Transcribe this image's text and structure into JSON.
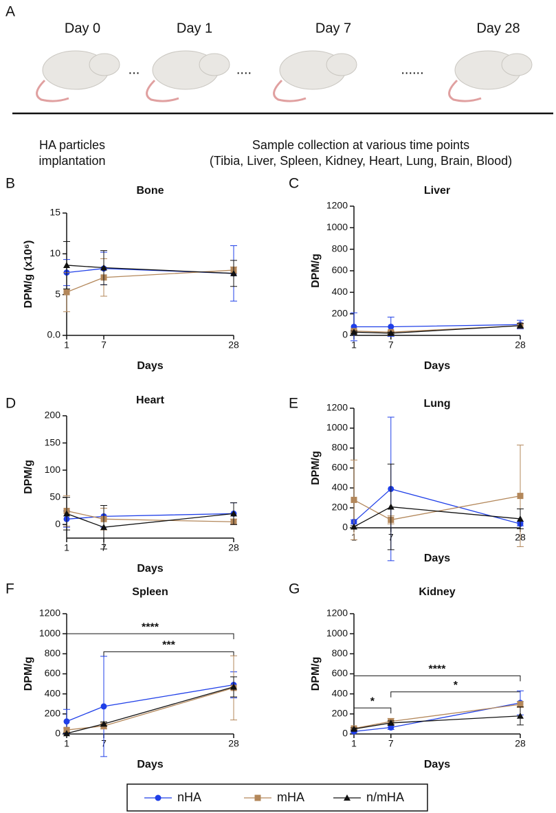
{
  "panel_a": {
    "letter": "A",
    "days": [
      "Day 0",
      "Day 1",
      "Day 7",
      "Day 28"
    ],
    "dots": [
      "...",
      "....",
      "......"
    ],
    "caption_left": [
      "HA particles",
      "implantation"
    ],
    "caption_right": [
      "Sample collection at various time points",
      "(Tibia, Liver, Spleen, Kidney, Heart, Lung, Brain, Blood)"
    ]
  },
  "legend": [
    {
      "name": "nHA",
      "color": "#1f3fe8",
      "marker": "circle"
    },
    {
      "name": "mHA",
      "color": "#b3875a",
      "marker": "square"
    },
    {
      "name": "n/mHA",
      "color": "#111111",
      "marker": "triangle"
    }
  ],
  "chart_data": [
    {
      "type": "line",
      "letter": "B",
      "title": "Bone",
      "ylabel": "DPM/g (x10⁶)",
      "xlabel": "Days",
      "x": [
        1,
        7,
        28
      ],
      "xlim": [
        1,
        28
      ],
      "xticks": [
        1,
        7,
        28
      ],
      "ylim": [
        0,
        15
      ],
      "yticks": [
        {
          "value": 0,
          "label": "0.0"
        },
        5,
        10,
        15
      ],
      "series": [
        {
          "values": [
            7.7,
            8.2,
            7.6
          ],
          "errors": [
            1.6,
            2.0,
            3.4
          ]
        },
        {
          "values": [
            5.3,
            7.1,
            8.0
          ],
          "errors": [
            2.4,
            2.3,
            0.4
          ]
        },
        {
          "values": [
            8.6,
            8.3,
            7.6
          ],
          "errors": [
            2.9,
            2.1,
            1.6
          ]
        }
      ]
    },
    {
      "type": "line",
      "letter": "C",
      "title": "Liver",
      "ylabel": "DPM/g",
      "xlabel": "Days",
      "x": [
        1,
        7,
        28
      ],
      "xlim": [
        1,
        28
      ],
      "xticks": [
        1,
        7,
        28
      ],
      "ylim": [
        0,
        1200
      ],
      "yticks": [
        0,
        200,
        400,
        600,
        800,
        1000,
        1200
      ],
      "series": [
        {
          "values": [
            80,
            80,
            100
          ],
          "errors": [
            130,
            90,
            40
          ]
        },
        {
          "values": [
            40,
            30,
            90
          ],
          "errors": [
            10,
            10,
            20
          ]
        },
        {
          "values": [
            30,
            20,
            90
          ],
          "errors": [
            10,
            10,
            20
          ]
        }
      ]
    },
    {
      "type": "line",
      "letter": "D",
      "title": "Heart",
      "ylabel": "DPM/g",
      "xlabel": "Days",
      "x": [
        1,
        7,
        28
      ],
      "xlim": [
        1,
        28
      ],
      "xticks": [
        1,
        7,
        28
      ],
      "ylim": [
        -25,
        200
      ],
      "yticks": [
        0,
        50,
        100,
        150,
        200
      ],
      "series": [
        {
          "values": [
            10,
            15,
            20
          ],
          "errors": [
            15,
            20,
            20
          ]
        },
        {
          "values": [
            25,
            10,
            5
          ],
          "errors": [
            28,
            20,
            5
          ]
        },
        {
          "values": [
            20,
            -5,
            20
          ],
          "errors": [
            30,
            40,
            20
          ]
        }
      ]
    },
    {
      "type": "line",
      "letter": "E",
      "title": "Lung",
      "ylabel": "DPM/g",
      "xlabel": "Days",
      "x": [
        1,
        7,
        28
      ],
      "xlim": [
        1,
        28
      ],
      "xticks": [
        1,
        7,
        28
      ],
      "ylim": [
        0,
        1200
      ],
      "yticks": [
        0,
        200,
        400,
        600,
        800,
        1000,
        1200
      ],
      "series": [
        {
          "values": [
            60,
            390,
            40
          ],
          "errors": [
            20,
            720,
            20
          ]
        },
        {
          "values": [
            280,
            80,
            320
          ],
          "errors": [
            400,
            40,
            510
          ]
        },
        {
          "values": [
            10,
            210,
            90
          ],
          "errors": [
            10,
            430,
            100
          ]
        }
      ]
    },
    {
      "type": "line",
      "letter": "F",
      "title": "Spleen",
      "ylabel": "DPM/g",
      "xlabel": "Days",
      "x": [
        1,
        7,
        28
      ],
      "xlim": [
        1,
        28
      ],
      "xticks": [
        1,
        7,
        28
      ],
      "ylim": [
        0,
        1200
      ],
      "yticks": [
        0,
        200,
        400,
        600,
        800,
        1000,
        1200
      ],
      "series": [
        {
          "values": [
            125,
            275,
            490
          ],
          "errors": [
            120,
            500,
            130
          ]
        },
        {
          "values": [
            40,
            80,
            460
          ],
          "errors": [
            20,
            30,
            320
          ]
        },
        {
          "values": [
            5,
            100,
            470
          ],
          "errors": [
            5,
            20,
            100
          ]
        }
      ],
      "brackets": [
        {
          "label": "****",
          "from": 1,
          "to": 28,
          "y": 1000
        },
        {
          "label": "***",
          "from": 7,
          "to": 28,
          "y": 820
        }
      ]
    },
    {
      "type": "line",
      "letter": "G",
      "title": "Kidney",
      "ylabel": "DPM/g",
      "xlabel": "Days",
      "x": [
        1,
        7,
        28
      ],
      "xlim": [
        1,
        28
      ],
      "xticks": [
        1,
        7,
        28
      ],
      "ylim": [
        0,
        1200
      ],
      "yticks": [
        0,
        200,
        400,
        600,
        800,
        1000,
        1200
      ],
      "series": [
        {
          "values": [
            25,
            65,
            310
          ],
          "errors": [
            10,
            20,
            120
          ]
        },
        {
          "values": [
            55,
            125,
            295
          ],
          "errors": [
            10,
            30,
            30
          ]
        },
        {
          "values": [
            50,
            110,
            180
          ],
          "errors": [
            10,
            20,
            90
          ]
        }
      ],
      "brackets": [
        {
          "label": "*",
          "from": 1,
          "to": 7,
          "y": 260
        },
        {
          "label": "****",
          "from": 1,
          "to": 28,
          "y": 580
        },
        {
          "label": "*",
          "from": 7,
          "to": 28,
          "y": 420
        }
      ]
    }
  ]
}
